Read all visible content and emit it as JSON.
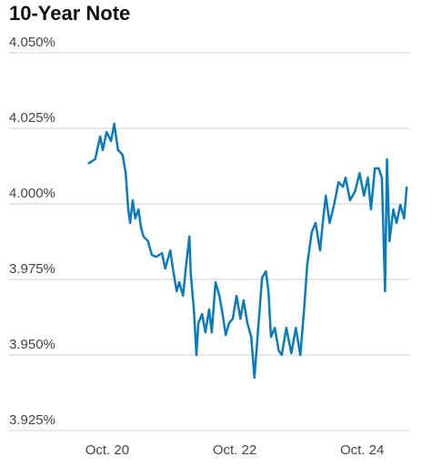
{
  "chart_data": {
    "type": "line",
    "title": "10-Year Note",
    "x": [
      19.7,
      19.81,
      19.89,
      19.93,
      19.99,
      20.06,
      20.11,
      20.17,
      20.24,
      20.29,
      20.33,
      20.36,
      20.4,
      20.44,
      20.49,
      20.53,
      20.57,
      20.64,
      20.7,
      20.77,
      20.86,
      20.91,
      20.99,
      21.03,
      21.09,
      21.13,
      21.19,
      21.24,
      21.29,
      21.31,
      21.36,
      21.4,
      21.43,
      21.49,
      21.54,
      21.6,
      21.64,
      21.7,
      21.76,
      21.81,
      21.86,
      21.91,
      21.97,
      22.03,
      22.09,
      22.14,
      22.2,
      22.26,
      22.31,
      22.37,
      22.43,
      22.49,
      22.53,
      22.57,
      22.63,
      22.69,
      22.74,
      22.81,
      22.89,
      22.96,
      23.03,
      23.09,
      23.14,
      23.21,
      23.27,
      23.34,
      23.39,
      23.43,
      23.49,
      23.56,
      23.63,
      23.7,
      23.74,
      23.81,
      23.89,
      23.96,
      24.03,
      24.09,
      24.14,
      24.2,
      24.26,
      24.31,
      24.36,
      24.39,
      24.43,
      24.49,
      24.54,
      24.6,
      24.66,
      24.7
    ],
    "series": [
      {
        "name": "10-Year Note",
        "color": "#0a7bbd",
        "values": [
          4.0133,
          4.0148,
          4.0223,
          4.0178,
          4.0238,
          4.0208,
          4.0265,
          4.0178,
          4.0163,
          4.0102,
          3.9982,
          3.9937,
          4.0012,
          3.9952,
          3.9982,
          3.9922,
          3.9892,
          3.9877,
          3.9831,
          3.9825,
          3.9837,
          3.9786,
          3.9846,
          3.9786,
          3.9711,
          3.9741,
          3.9696,
          3.9801,
          3.9892,
          3.9771,
          3.9651,
          3.95,
          3.9605,
          3.9636,
          3.9575,
          3.9651,
          3.9575,
          3.9741,
          3.9696,
          3.9636,
          3.9566,
          3.9605,
          3.962,
          3.9696,
          3.962,
          3.9681,
          3.9605,
          3.956,
          3.9425,
          3.959,
          3.9756,
          3.9777,
          3.9711,
          3.956,
          3.959,
          3.9515,
          3.95,
          3.959,
          3.9506,
          3.959,
          3.95,
          3.9651,
          3.9801,
          3.9907,
          3.9937,
          3.9846,
          3.9952,
          4.0027,
          3.9937,
          3.9997,
          4.0072,
          4.0057,
          4.0087,
          4.0012,
          4.0042,
          4.0102,
          4.0027,
          4.0087,
          3.9982,
          4.0118,
          4.0118,
          4.0087,
          3.9711,
          4.0148,
          3.9877,
          3.9982,
          3.9937,
          3.9997,
          3.9952,
          4.0057
        ]
      }
    ],
    "xlim": [
      18.46,
      24.74
    ],
    "xticks": [
      {
        "value": 20,
        "label": "Oct. 20"
      },
      {
        "value": 22,
        "label": "Oct. 22"
      },
      {
        "value": 24,
        "label": "Oct. 24"
      }
    ],
    "ylim": [
      3.925,
      4.05
    ],
    "yticks": [
      {
        "value": 3.925,
        "label": "3.925%"
      },
      {
        "value": 3.95,
        "label": "3.950%"
      },
      {
        "value": 3.975,
        "label": "3.975%"
      },
      {
        "value": 4.0,
        "label": "4.000%"
      },
      {
        "value": 4.025,
        "label": "4.025%"
      },
      {
        "value": 4.05,
        "label": "4.050%"
      }
    ],
    "grid": true
  }
}
